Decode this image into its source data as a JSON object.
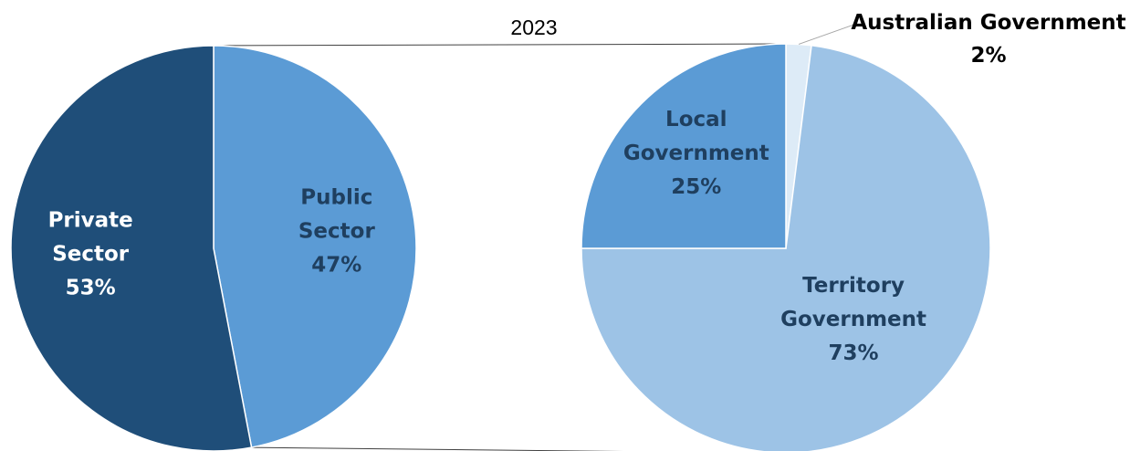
{
  "chart_data": [
    {
      "type": "pie",
      "title": "2023",
      "slices": [
        {
          "label_lines": [
            "Public",
            "Sector"
          ],
          "value": 47,
          "value_label": "47%",
          "color": "#5B9BD5",
          "text_color": "#1F3F5F"
        },
        {
          "label_lines": [
            "Private",
            "Sector"
          ],
          "value": 53,
          "value_label": "53%",
          "color": "#1F4E79",
          "text_color": "#FFFFFF"
        }
      ]
    },
    {
      "type": "pie",
      "subtitle_of": "Public Sector",
      "slices": [
        {
          "label_lines": [
            "Australian Government"
          ],
          "value": 2,
          "value_label": "2%",
          "color": "#DDEBF7",
          "text_color": "#000000"
        },
        {
          "label_lines": [
            "Territory",
            "Government"
          ],
          "value": 73,
          "value_label": "73%",
          "color": "#9DC3E6",
          "text_color": "#1F3F5F"
        },
        {
          "label_lines": [
            "Local",
            "Government"
          ],
          "value": 25,
          "value_label": "25%",
          "color": "#5B9BD5",
          "text_color": "#1F3F5F"
        }
      ]
    }
  ]
}
